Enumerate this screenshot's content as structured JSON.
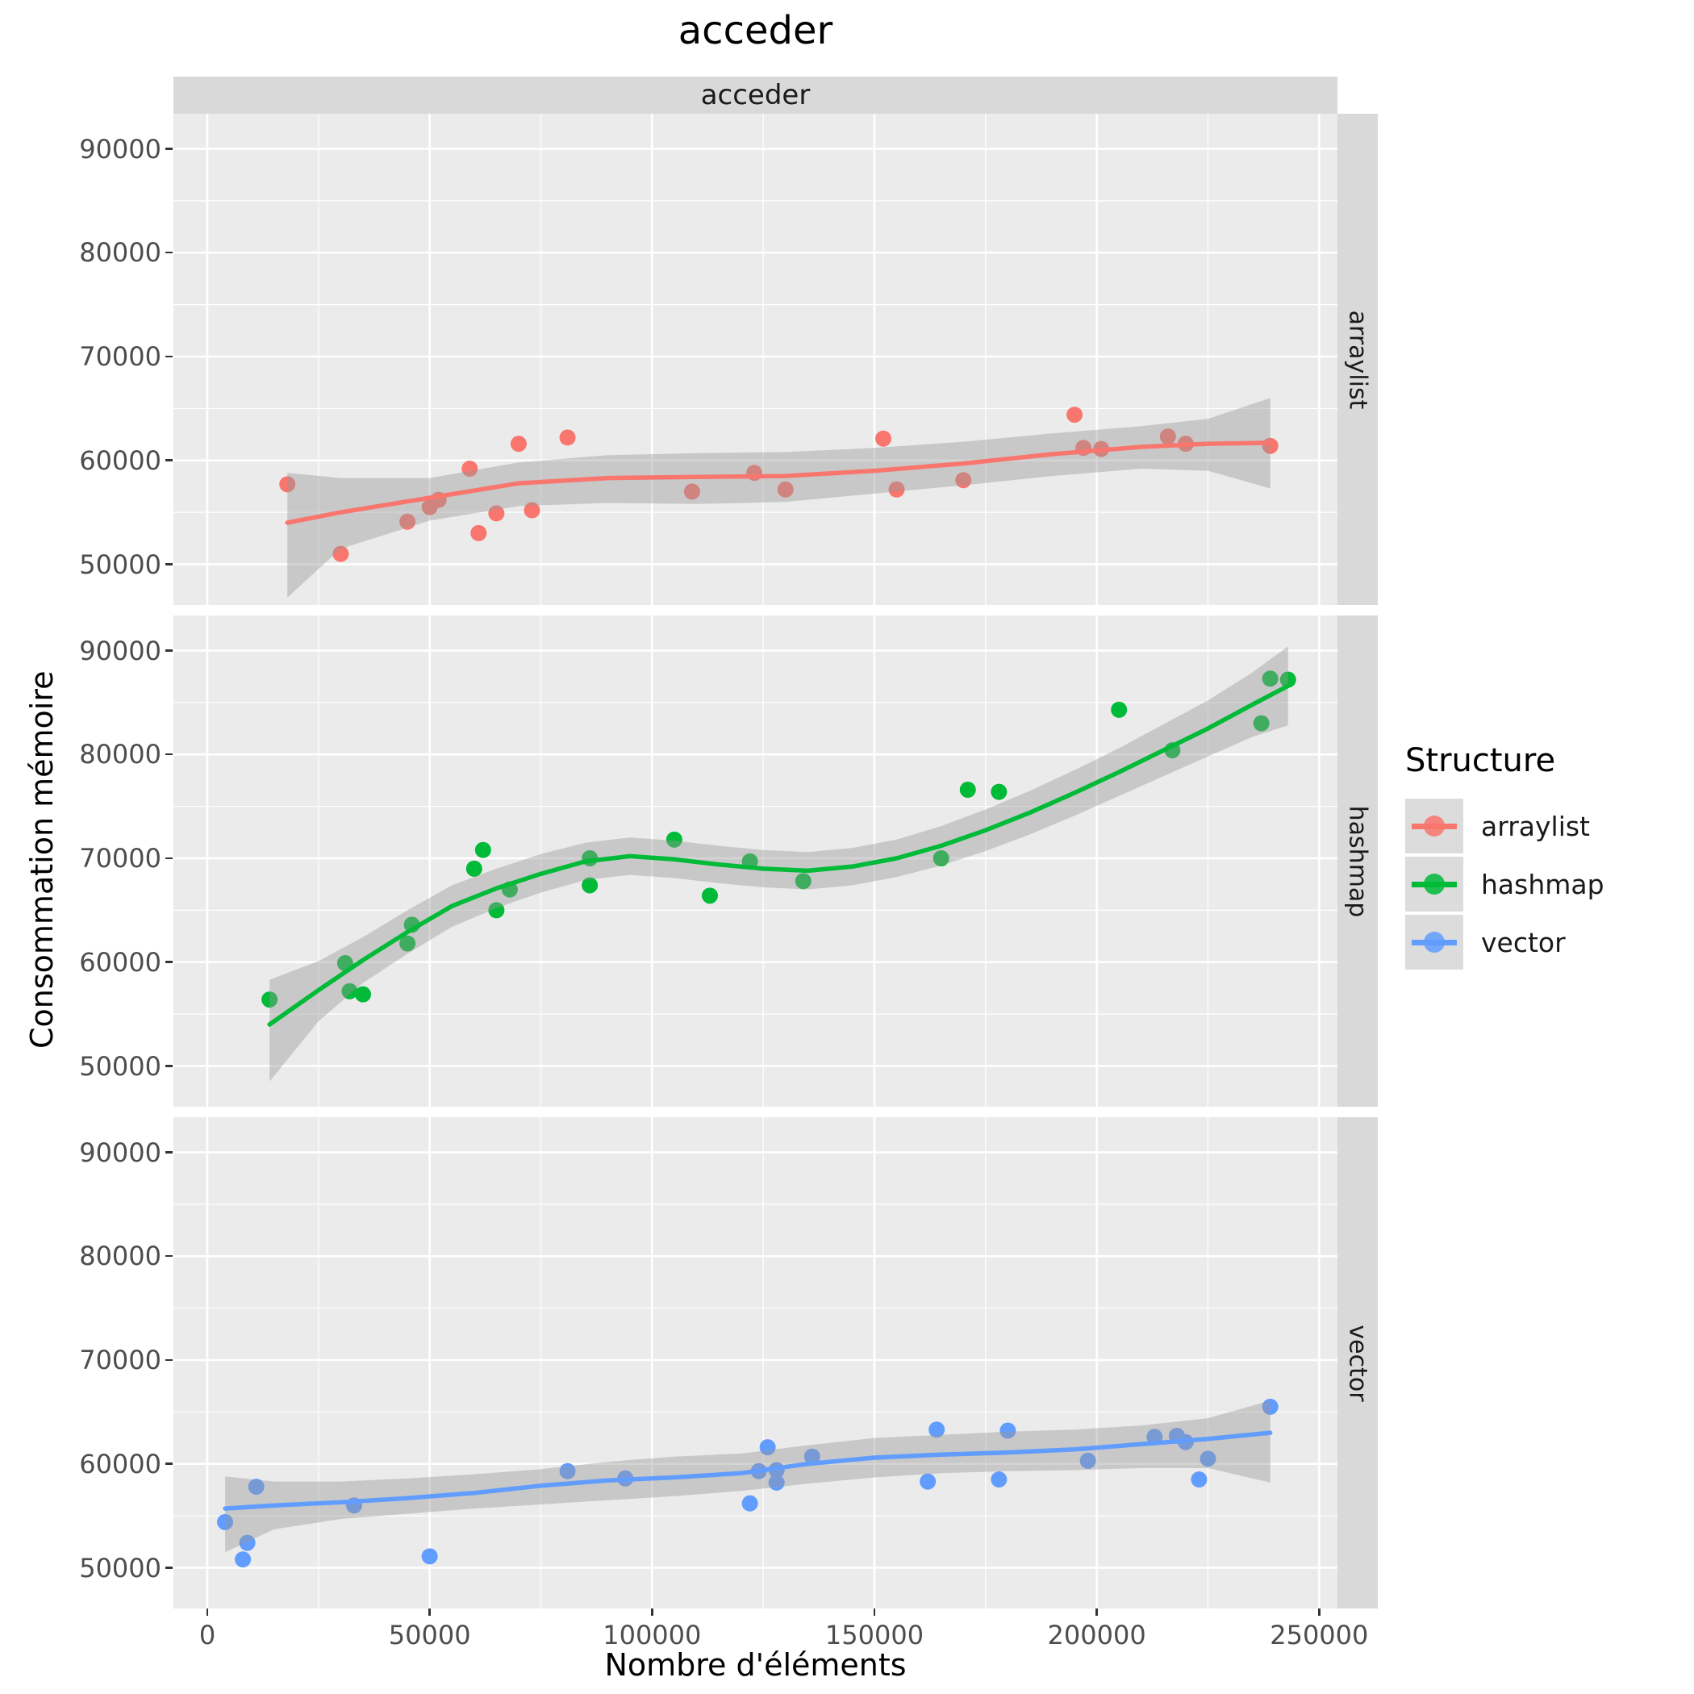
{
  "title": "acceder",
  "facet": {
    "top_strip": "acceder",
    "right_strips": [
      "arraylist",
      "hashmap",
      "vector"
    ]
  },
  "axes": {
    "x": {
      "title": "Nombre d'éléments",
      "tick_labels": [
        "0",
        "50000",
        "100000",
        "150000",
        "200000",
        "250000"
      ],
      "tick_values": [
        0,
        50000,
        100000,
        150000,
        200000,
        250000
      ],
      "minor_values": [
        25000,
        75000,
        125000,
        175000,
        225000
      ]
    },
    "y": {
      "title": "Consommation mémoire",
      "tick_labels": [
        "50000",
        "60000",
        "70000",
        "80000",
        "90000"
      ],
      "tick_values": [
        50000,
        60000,
        70000,
        80000,
        90000
      ],
      "minor_values": [
        55000,
        65000,
        75000,
        85000
      ]
    }
  },
  "legend": {
    "title": "Structure",
    "entries": [
      {
        "label": "arraylist",
        "color": "#F8766D"
      },
      {
        "label": "hashmap",
        "color": "#00BA38"
      },
      {
        "label": "vector",
        "color": "#619CFF"
      }
    ]
  },
  "style": {
    "panel_bg": "#EBEBEB",
    "strip_bg": "#D9D9D9",
    "grid_color": "#FFFFFF",
    "band_color": "#999999",
    "band_opacity": 0.42,
    "tick_color": "#333333",
    "axis_text_color": "#4D4D4D",
    "key_bg": "#DCDCDC",
    "point_radius": 10,
    "line_width": 5.5
  },
  "chart_data": {
    "type": "scatter",
    "title": "acceder",
    "facet_top_label": "acceder",
    "xlabel": "Nombre d'éléments",
    "ylabel": "Consommation mémoire",
    "x_ticks": [
      0,
      50000,
      100000,
      150000,
      200000,
      250000
    ],
    "y_ticks": [
      50000,
      60000,
      70000,
      80000,
      90000
    ],
    "xlim": [
      -7600,
      250900
    ],
    "ylim_per_panel": [
      44100,
      93378
    ],
    "grid": true,
    "legend_position": "right",
    "smoother": "loess with confidence band",
    "panels": [
      {
        "name": "arraylist",
        "color": "#F8766D",
        "points": [
          [
            18000,
            57700
          ],
          [
            30000,
            51000
          ],
          [
            45000,
            54100
          ],
          [
            50000,
            55500
          ],
          [
            52000,
            56200
          ],
          [
            59000,
            59200
          ],
          [
            61000,
            53000
          ],
          [
            65000,
            54900
          ],
          [
            70000,
            61600
          ],
          [
            73000,
            55200
          ],
          [
            81000,
            62200
          ],
          [
            109000,
            57000
          ],
          [
            123000,
            58800
          ],
          [
            130000,
            57200
          ],
          [
            152000,
            62100
          ],
          [
            155000,
            57200
          ],
          [
            170000,
            58100
          ],
          [
            195000,
            64400
          ],
          [
            197000,
            61200
          ],
          [
            201000,
            61100
          ],
          [
            216000,
            62300
          ],
          [
            220000,
            61600
          ],
          [
            239000,
            61400
          ]
        ],
        "smooth": [
          [
            18000,
            54000
          ],
          [
            30000,
            55000
          ],
          [
            50000,
            56400
          ],
          [
            70000,
            57800
          ],
          [
            90000,
            58300
          ],
          [
            110000,
            58400
          ],
          [
            130000,
            58500
          ],
          [
            150000,
            59000
          ],
          [
            170000,
            59700
          ],
          [
            190000,
            60600
          ],
          [
            210000,
            61300
          ],
          [
            225000,
            61600
          ],
          [
            239000,
            61700
          ]
        ],
        "band": [
          [
            18000,
            46800,
            58800
          ],
          [
            30000,
            51500,
            58300
          ],
          [
            50000,
            54200,
            58300
          ],
          [
            70000,
            55600,
            59800
          ],
          [
            90000,
            55900,
            60500
          ],
          [
            110000,
            55800,
            60700
          ],
          [
            130000,
            56000,
            60800
          ],
          [
            150000,
            56800,
            61200
          ],
          [
            170000,
            57600,
            61800
          ],
          [
            190000,
            58500,
            62600
          ],
          [
            210000,
            59200,
            63300
          ],
          [
            225000,
            59000,
            64000
          ],
          [
            239000,
            57300,
            66000
          ]
        ]
      },
      {
        "name": "hashmap",
        "color": "#00BA38",
        "points": [
          [
            14000,
            56400
          ],
          [
            31000,
            59900
          ],
          [
            32000,
            57200
          ],
          [
            35000,
            56900
          ],
          [
            45000,
            61800
          ],
          [
            46000,
            63600
          ],
          [
            60000,
            69000
          ],
          [
            62000,
            70800
          ],
          [
            65000,
            65000
          ],
          [
            68000,
            67000
          ],
          [
            86000,
            70000
          ],
          [
            86000,
            67400
          ],
          [
            105000,
            71800
          ],
          [
            113000,
            66400
          ],
          [
            122000,
            69700
          ],
          [
            134000,
            67800
          ],
          [
            165000,
            70000
          ],
          [
            171000,
            76600
          ],
          [
            178000,
            76400
          ],
          [
            205000,
            84300
          ],
          [
            217000,
            80400
          ],
          [
            237000,
            83000
          ],
          [
            239000,
            87300
          ],
          [
            243000,
            87200
          ]
        ],
        "smooth": [
          [
            14000,
            54000
          ],
          [
            25000,
            57300
          ],
          [
            35000,
            60200
          ],
          [
            45000,
            62900
          ],
          [
            55000,
            65400
          ],
          [
            65000,
            67100
          ],
          [
            75000,
            68500
          ],
          [
            85000,
            69700
          ],
          [
            95000,
            70200
          ],
          [
            105000,
            69900
          ],
          [
            115000,
            69400
          ],
          [
            125000,
            69000
          ],
          [
            135000,
            68800
          ],
          [
            145000,
            69200
          ],
          [
            155000,
            70000
          ],
          [
            165000,
            71200
          ],
          [
            175000,
            72700
          ],
          [
            185000,
            74400
          ],
          [
            195000,
            76300
          ],
          [
            205000,
            78300
          ],
          [
            215000,
            80400
          ],
          [
            225000,
            82500
          ],
          [
            235000,
            84800
          ],
          [
            243000,
            86600
          ]
        ],
        "band": [
          [
            14000,
            48500,
            58300
          ],
          [
            25000,
            54300,
            60100
          ],
          [
            35000,
            58000,
            62400
          ],
          [
            45000,
            60800,
            65000
          ],
          [
            55000,
            63400,
            67400
          ],
          [
            65000,
            65200,
            69000
          ],
          [
            75000,
            66700,
            70400
          ],
          [
            85000,
            67900,
            71500
          ],
          [
            95000,
            68400,
            72000
          ],
          [
            105000,
            68100,
            71700
          ],
          [
            115000,
            67600,
            71200
          ],
          [
            125000,
            67200,
            70800
          ],
          [
            135000,
            67000,
            70600
          ],
          [
            145000,
            67400,
            71000
          ],
          [
            155000,
            68200,
            71800
          ],
          [
            165000,
            69300,
            73100
          ],
          [
            175000,
            70700,
            74700
          ],
          [
            185000,
            72300,
            76500
          ],
          [
            195000,
            74100,
            78500
          ],
          [
            205000,
            76000,
            80600
          ],
          [
            215000,
            77900,
            82900
          ],
          [
            225000,
            79800,
            85200
          ],
          [
            235000,
            81700,
            87900
          ],
          [
            243000,
            82800,
            90400
          ]
        ]
      },
      {
        "name": "vector",
        "color": "#619CFF",
        "points": [
          [
            4000,
            54400
          ],
          [
            8000,
            50800
          ],
          [
            9000,
            52400
          ],
          [
            11000,
            57800
          ],
          [
            33000,
            56000
          ],
          [
            50000,
            51100
          ],
          [
            81000,
            59300
          ],
          [
            94000,
            58600
          ],
          [
            122000,
            56200
          ],
          [
            124000,
            59300
          ],
          [
            126000,
            61600
          ],
          [
            128000,
            59400
          ],
          [
            128000,
            58200
          ],
          [
            136000,
            60700
          ],
          [
            162000,
            58300
          ],
          [
            164000,
            63300
          ],
          [
            178000,
            58500
          ],
          [
            180000,
            63200
          ],
          [
            198000,
            60300
          ],
          [
            213000,
            62600
          ],
          [
            218000,
            62700
          ],
          [
            220000,
            62100
          ],
          [
            223000,
            58500
          ],
          [
            225000,
            60500
          ],
          [
            239000,
            65500
          ]
        ],
        "smooth": [
          [
            4000,
            55700
          ],
          [
            15000,
            56000
          ],
          [
            30000,
            56300
          ],
          [
            45000,
            56700
          ],
          [
            60000,
            57200
          ],
          [
            75000,
            57900
          ],
          [
            90000,
            58400
          ],
          [
            105000,
            58700
          ],
          [
            120000,
            59100
          ],
          [
            135000,
            60000
          ],
          [
            150000,
            60600
          ],
          [
            165000,
            60900
          ],
          [
            180000,
            61100
          ],
          [
            195000,
            61400
          ],
          [
            210000,
            61900
          ],
          [
            225000,
            62400
          ],
          [
            239000,
            63000
          ]
        ],
        "band": [
          [
            4000,
            51500,
            58800
          ],
          [
            15000,
            53700,
            58300
          ],
          [
            30000,
            54700,
            58300
          ],
          [
            45000,
            55200,
            58600
          ],
          [
            60000,
            55700,
            59000
          ],
          [
            75000,
            56100,
            59500
          ],
          [
            90000,
            56500,
            60200
          ],
          [
            105000,
            56900,
            60700
          ],
          [
            120000,
            57400,
            61000
          ],
          [
            135000,
            58100,
            61800
          ],
          [
            150000,
            58700,
            62500
          ],
          [
            165000,
            59100,
            62800
          ],
          [
            180000,
            59300,
            63100
          ],
          [
            195000,
            59400,
            63300
          ],
          [
            210000,
            59600,
            63700
          ],
          [
            225000,
            59600,
            64400
          ],
          [
            239000,
            58200,
            66100
          ]
        ]
      }
    ]
  }
}
